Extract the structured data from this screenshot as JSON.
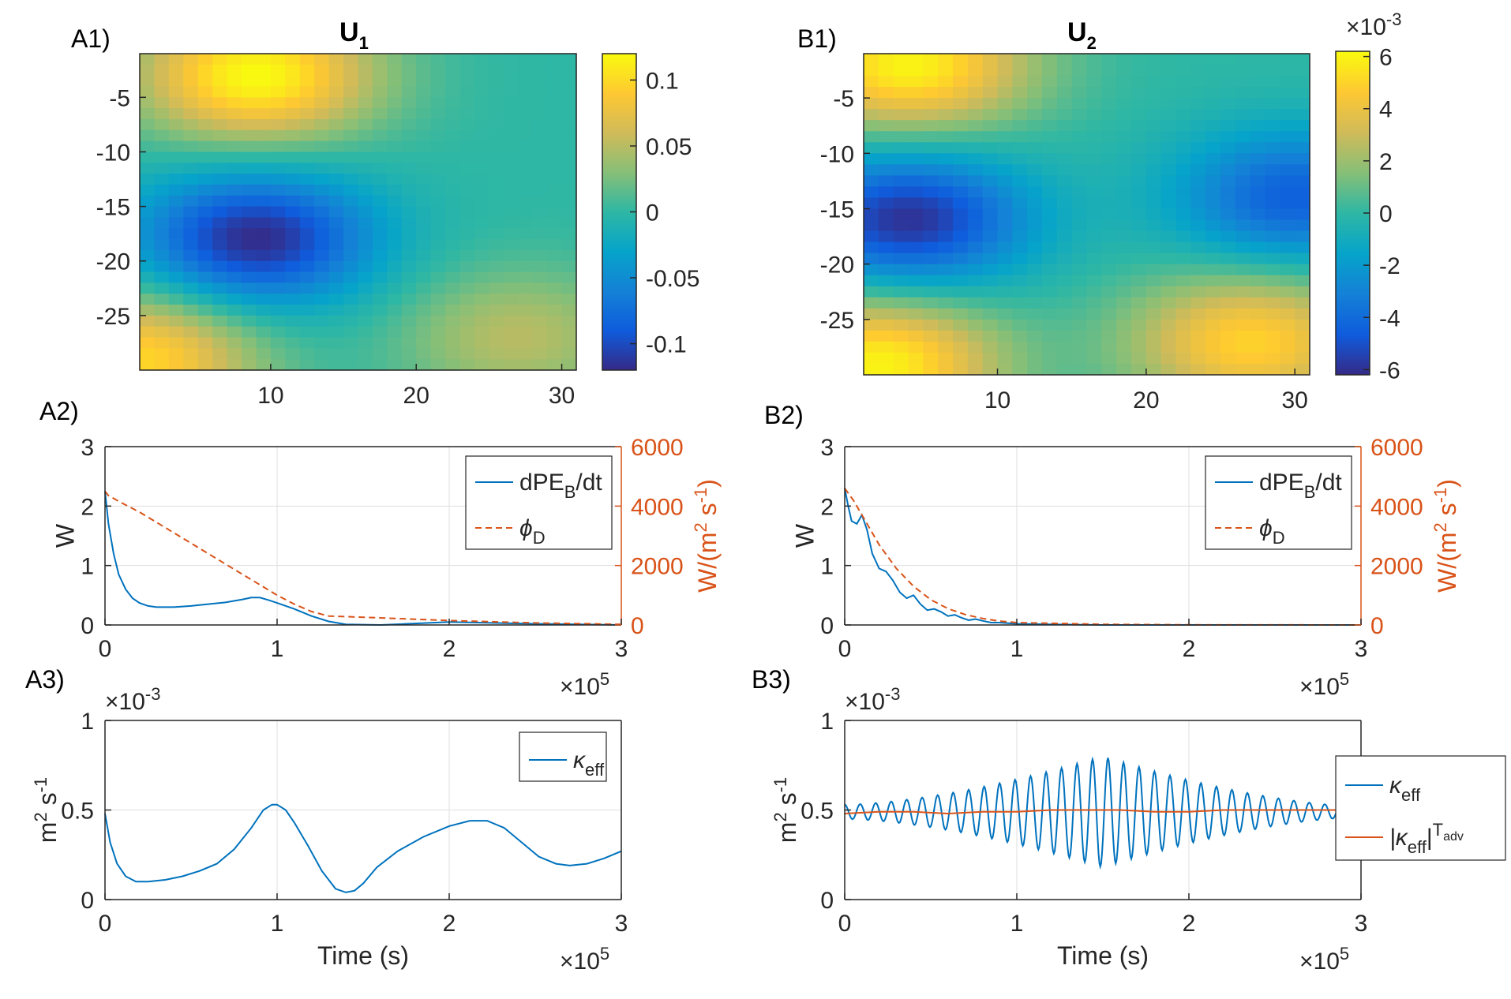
{
  "panels": {
    "a1": "A1)",
    "b1": "B1)",
    "a2": "A2)",
    "b2": "B2)",
    "a3": "A3)",
    "b3": "B3)"
  },
  "titles": {
    "a1_main": "U",
    "a1_sub": "1",
    "b1_main": "U",
    "b1_sub": "2"
  },
  "colors": {
    "blue": "#0072BD",
    "orange": "#D95319",
    "parula": [
      "#352A87",
      "#0F5CDD",
      "#1481D6",
      "#06A4CA",
      "#2EB7A4",
      "#87BF77",
      "#D1BB59",
      "#FEC832",
      "#F9FB0E"
    ]
  },
  "chart_data": [
    {
      "id": "A1",
      "type": "heatmap",
      "title": "U_1",
      "xlim": [
        1,
        31
      ],
      "ylim": [
        -30,
        -1
      ],
      "xticks": [
        "10",
        "20",
        "30"
      ],
      "yticks": [
        "-5",
        "-10",
        "-15",
        "-20",
        "-25"
      ],
      "colorbar": {
        "range": [
          -0.12,
          0.12
        ],
        "ticks": [
          "0.1",
          "0.05",
          "0",
          "-0.05",
          "-0.1"
        ]
      },
      "features": [
        {
          "kind": "max",
          "x": 9,
          "y": -3,
          "value": 0.12
        },
        {
          "kind": "min",
          "x": 9,
          "y": -18,
          "value": -0.12
        },
        {
          "kind": "max",
          "x": 1,
          "y": -29,
          "value": 0.1
        },
        {
          "kind": "max",
          "x": 27,
          "y": -27,
          "value": 0.05
        }
      ]
    },
    {
      "id": "B1",
      "type": "heatmap",
      "title": "U_2",
      "xlim": [
        1,
        31
      ],
      "ylim": [
        -30,
        -1
      ],
      "xticks": [
        "10",
        "20",
        "30"
      ],
      "yticks": [
        "-5",
        "-10",
        "-15",
        "-20",
        "-25"
      ],
      "colorbar": {
        "range": [
          -0.0062,
          0.0062
        ],
        "ticks": [
          "6",
          "4",
          "2",
          "0",
          "-2",
          "-4",
          "-6"
        ],
        "exponent_base": "×10",
        "exponent": "-3"
      },
      "features": [
        {
          "kind": "max",
          "x": 4,
          "y": -2,
          "value": 0.006
        },
        {
          "kind": "min",
          "x": 4,
          "y": -16,
          "value": -0.006
        },
        {
          "kind": "min",
          "x": 30,
          "y": -14,
          "value": -0.0045
        },
        {
          "kind": "max",
          "x": 27,
          "y": -27,
          "value": 0.005
        },
        {
          "kind": "max",
          "x": 2,
          "y": -29,
          "value": 0.006
        }
      ]
    },
    {
      "id": "A2",
      "type": "line",
      "xlim": [
        0,
        300000
      ],
      "ylim": [
        0,
        3
      ],
      "ylim_right": [
        0,
        6000
      ],
      "xticks": [
        "0",
        "1",
        "2",
        "3"
      ],
      "yticks": [
        "0",
        "1",
        "2",
        "3"
      ],
      "yticks_right": [
        "0",
        "2000",
        "4000",
        "6000"
      ],
      "x_exponent_base": "×10",
      "x_exponent": "5",
      "ylabel": "W",
      "ylabel_right_pre": "W/(m",
      "ylabel_right_sup1": "2",
      "ylabel_right_mid": " s",
      "ylabel_right_sup2": "-1",
      "ylabel_right_post": ")",
      "legend": {
        "s1_main": "dPE",
        "s1_sub": "B",
        "s1_tail": "/dt",
        "s2_main": "ϕ",
        "s2_sub": "D"
      },
      "series": [
        {
          "axis": "left",
          "style": "solid",
          "x": [
            0,
            2000,
            5000,
            8000,
            12000,
            16000,
            20000,
            25000,
            30000,
            40000,
            50000,
            60000,
            70000,
            80000,
            85000,
            90000,
            95000,
            100000,
            110000,
            120000,
            130000,
            140000,
            160000,
            200000,
            250000,
            300000
          ],
          "y": [
            2.25,
            1.7,
            1.2,
            0.85,
            0.6,
            0.45,
            0.37,
            0.32,
            0.3,
            0.3,
            0.32,
            0.35,
            0.38,
            0.43,
            0.46,
            0.46,
            0.42,
            0.37,
            0.27,
            0.15,
            0.06,
            0.01,
            0.0,
            0.05,
            0.02,
            0.0
          ]
        },
        {
          "axis": "right",
          "style": "dashed",
          "x": [
            0,
            2000,
            10000,
            20000,
            30000,
            40000,
            50000,
            60000,
            70000,
            80000,
            90000,
            100000,
            110000,
            120000,
            130000,
            150000,
            200000,
            250000,
            300000
          ],
          "y": [
            4500,
            4350,
            4100,
            3800,
            3450,
            3100,
            2750,
            2400,
            2050,
            1700,
            1350,
            1000,
            700,
            450,
            300,
            260,
            150,
            70,
            20
          ]
        }
      ]
    },
    {
      "id": "B2",
      "type": "line",
      "xlim": [
        0,
        300000
      ],
      "ylim": [
        0,
        3
      ],
      "ylim_right": [
        0,
        6000
      ],
      "xticks": [
        "0",
        "1",
        "2",
        "3"
      ],
      "yticks": [
        "0",
        "1",
        "2",
        "3"
      ],
      "yticks_right": [
        "0",
        "2000",
        "4000",
        "6000"
      ],
      "x_exponent_base": "×10",
      "x_exponent": "5",
      "ylabel": "W",
      "ylabel_right_pre": "W/(m",
      "ylabel_right_sup1": "2",
      "ylabel_right_mid": " s",
      "ylabel_right_sup2": "-1",
      "ylabel_right_post": ")",
      "legend": {
        "s1_main": "dPE",
        "s1_sub": "B",
        "s1_tail": "/dt",
        "s2_main": "ϕ",
        "s2_sub": "D"
      },
      "series": [
        {
          "axis": "left",
          "style": "solid",
          "x": [
            0,
            2000,
            4000,
            7000,
            10000,
            13000,
            16000,
            20000,
            24000,
            28000,
            32000,
            36000,
            40000,
            44000,
            48000,
            52000,
            56000,
            60000,
            64000,
            68000,
            72000,
            76000,
            80000,
            85000,
            90000,
            100000,
            120000,
            150000,
            200000,
            300000
          ],
          "y": [
            2.3,
            2.0,
            1.75,
            1.7,
            1.85,
            1.6,
            1.2,
            0.95,
            0.9,
            0.75,
            0.55,
            0.45,
            0.5,
            0.35,
            0.25,
            0.27,
            0.22,
            0.15,
            0.17,
            0.12,
            0.08,
            0.1,
            0.07,
            0.04,
            0.04,
            0.02,
            0.01,
            0.0,
            0.0,
            0.0
          ]
        },
        {
          "axis": "right",
          "style": "dashed",
          "x": [
            0,
            5000,
            10000,
            20000,
            30000,
            40000,
            50000,
            60000,
            70000,
            80000,
            90000,
            100000,
            150000,
            200000,
            300000
          ],
          "y": [
            4600,
            4200,
            3700,
            2700,
            1900,
            1300,
            850,
            550,
            350,
            220,
            130,
            80,
            20,
            5,
            0
          ]
        }
      ]
    },
    {
      "id": "A3",
      "type": "line",
      "xlim": [
        0,
        300000
      ],
      "ylim": [
        0,
        0.001
      ],
      "xticks": [
        "0",
        "1",
        "2",
        "3"
      ],
      "yticks": [
        "0",
        "0.5",
        "1"
      ],
      "y_exponent_base": "×10",
      "y_exponent": "-3",
      "x_exponent_base": "×10",
      "x_exponent": "5",
      "xlabel": "Time (s)",
      "ylabel_pre": "m",
      "ylabel_sup1": "2",
      "ylabel_mid": " s",
      "ylabel_sup2": "-1",
      "legend": {
        "s1_main": "κ",
        "s1_sub": "eff"
      },
      "series": [
        {
          "style": "solid",
          "x": [
            0,
            3000,
            7000,
            12000,
            18000,
            25000,
            35000,
            45000,
            55000,
            65000,
            75000,
            85000,
            92000,
            97000,
            100000,
            105000,
            110000,
            118000,
            126000,
            134000,
            140000,
            145000,
            150000,
            158000,
            170000,
            185000,
            200000,
            212000,
            222000,
            232000,
            242000,
            252000,
            262000,
            270000,
            280000,
            290000,
            300000
          ],
          "y": [
            0.00048,
            0.00032,
            0.0002,
            0.00013,
            0.0001,
            0.0001,
            0.00011,
            0.00013,
            0.00016,
            0.0002,
            0.00028,
            0.0004,
            0.0005,
            0.00053,
            0.00053,
            0.0005,
            0.00043,
            0.0003,
            0.00016,
            6e-05,
            4e-05,
            5e-05,
            9e-05,
            0.00018,
            0.00027,
            0.00035,
            0.00041,
            0.00044,
            0.00044,
            0.0004,
            0.00032,
            0.00024,
            0.0002,
            0.00019,
            0.0002,
            0.00023,
            0.00027
          ]
        }
      ]
    },
    {
      "id": "B3",
      "type": "line",
      "xlim": [
        0,
        300000
      ],
      "ylim": [
        0,
        0.001
      ],
      "xticks": [
        "0",
        "1",
        "2",
        "3"
      ],
      "yticks": [
        "0",
        "0.5",
        "1"
      ],
      "y_exponent_base": "×10",
      "y_exponent": "-3",
      "x_exponent_base": "×10",
      "x_exponent": "5",
      "xlabel": "Time (s)",
      "ylabel_pre": "m",
      "ylabel_sup1": "2",
      "ylabel_mid": " s",
      "ylabel_sup2": "-1",
      "legend": {
        "s1_main": "κ",
        "s1_sub": "eff",
        "s2_pre": "|κ",
        "s2_sub": "eff",
        "s2_mid": "|",
        "s2_sup": "T",
        "s2_supsub": "adv"
      },
      "oscillation": {
        "mean": 0.00049,
        "period": 9000,
        "amp_start": 4e-05,
        "amp_peak": 0.00031,
        "peak_time": 150000,
        "amp_end": 3e-05
      },
      "series": [
        {
          "name": "κ_eff",
          "style": "solid",
          "x": [
            0,
            4500,
            9000,
            13500,
            18000,
            22500,
            27000,
            31500,
            36000,
            40500,
            45000,
            49500,
            54000,
            58500,
            63000,
            67500,
            72000,
            76500,
            81000,
            85500,
            90000,
            94500,
            99000,
            103500,
            108000,
            112500,
            117000,
            121500,
            126000,
            130500,
            135000,
            139500,
            144000,
            148500,
            153000,
            157500,
            162000,
            166500,
            171000,
            175500,
            180000,
            184500,
            189000,
            193500,
            198000,
            202500,
            207000,
            211500,
            216000,
            220500,
            225000,
            229500,
            234000,
            238500,
            243000,
            247500,
            252000,
            256500,
            261000,
            265500,
            270000,
            274500,
            279000,
            283500,
            288000,
            292500,
            297000,
            300000
          ],
          "y": [
            0.00045,
            0.00053,
            0.00044,
            0.00055,
            0.00043,
            0.00056,
            0.00042,
            0.00057,
            0.0004,
            0.00059,
            0.00038,
            0.00061,
            0.00036,
            0.00063,
            0.00034,
            0.00065,
            0.00032,
            0.00067,
            0.0003,
            0.00069,
            0.00027,
            0.00072,
            0.00025,
            0.00074,
            0.00023,
            0.00076,
            0.00021,
            0.00078,
            0.00019,
            0.00079,
            0.00019,
            0.0008,
            0.00018,
            0.0008,
            0.00018,
            0.0008,
            0.00019,
            0.00079,
            0.0002,
            0.00078,
            0.00021,
            0.00076,
            0.00023,
            0.00074,
            0.00025,
            0.00072,
            0.00027,
            0.0007,
            0.00029,
            0.00068,
            0.00031,
            0.00066,
            0.00033,
            0.00064,
            0.00035,
            0.00062,
            0.00037,
            0.0006,
            0.00039,
            0.00058,
            0.00041,
            0.00056,
            0.00043,
            0.00055,
            0.00044,
            0.00054,
            0.00045,
            0.00047
          ]
        },
        {
          "name": "|κ_eff|^T_adv",
          "style": "solid",
          "x": [
            0,
            20000,
            40000,
            60000,
            80000,
            100000,
            120000,
            140000,
            160000,
            180000,
            200000,
            220000,
            240000,
            260000,
            280000,
            300000
          ],
          "y": [
            0.00048,
            0.00049,
            0.00049,
            0.00048,
            0.00049,
            0.00049,
            0.0005,
            0.0005,
            0.0005,
            0.00049,
            0.00049,
            0.0005,
            0.0005,
            0.0005,
            0.0005,
            0.0005
          ]
        }
      ]
    }
  ]
}
